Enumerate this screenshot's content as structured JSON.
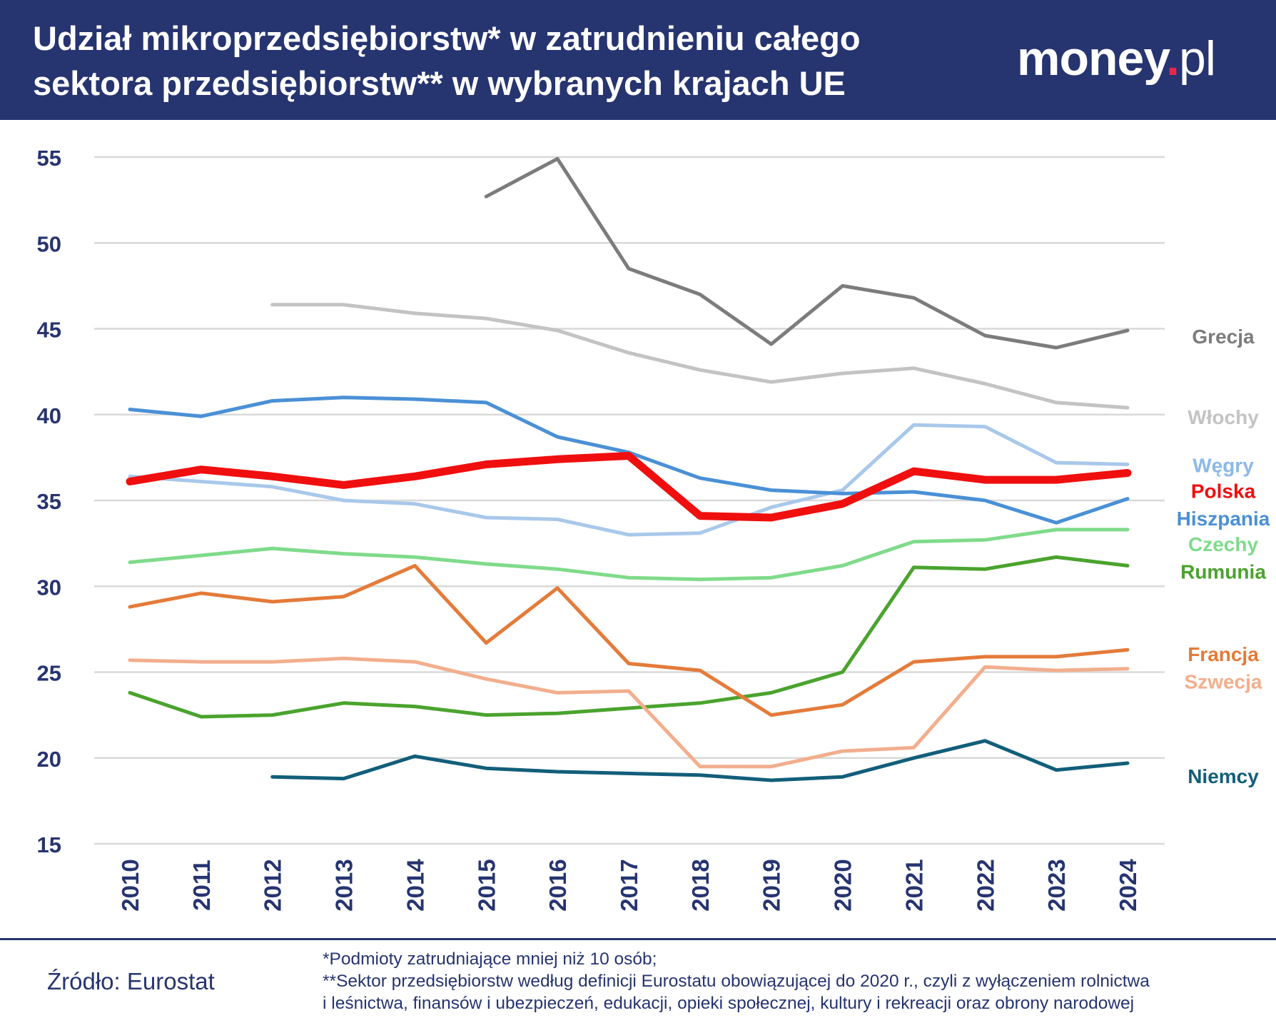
{
  "header": {
    "title": "Udział mikroprzedsiębiorstw* w zatrudnieniu całego sektora przedsiębiorstw** w wybranych krajach UE",
    "background": "#263470",
    "logo": {
      "main": "money",
      "dot": ".",
      "suffix": "pl",
      "dot_color": "#e8264c"
    }
  },
  "chart_data": {
    "type": "line",
    "x": [
      2010,
      2011,
      2012,
      2013,
      2014,
      2015,
      2016,
      2017,
      2018,
      2019,
      2020,
      2021,
      2022,
      2023,
      2024
    ],
    "ylim": [
      15,
      55
    ],
    "yticks": [
      15,
      20,
      25,
      30,
      35,
      40,
      45,
      50,
      55
    ],
    "grid": true,
    "legend": "labels at right end of lines",
    "series": [
      {
        "name": "Grecja",
        "color": "#7c7c7c",
        "width": 5,
        "values": [
          null,
          null,
          null,
          null,
          null,
          52.7,
          54.9,
          48.5,
          47.0,
          44.1,
          47.5,
          46.8,
          44.6,
          43.9,
          44.9
        ]
      },
      {
        "name": "Włochy",
        "color": "#c3c3c3",
        "width": 5,
        "values": [
          null,
          null,
          46.4,
          46.4,
          45.9,
          45.6,
          44.9,
          43.6,
          42.6,
          41.9,
          42.4,
          42.7,
          41.8,
          40.7,
          40.4
        ]
      },
      {
        "name": "Węgry",
        "color": "#a9c8ea",
        "width": 5,
        "values": [
          36.4,
          36.1,
          35.8,
          35.0,
          34.8,
          34.0,
          33.9,
          33.0,
          33.1,
          34.6,
          35.6,
          39.4,
          39.3,
          37.2,
          37.1
        ]
      },
      {
        "name": "Hiszpania",
        "color": "#4a90d6",
        "width": 5,
        "values": [
          40.3,
          39.9,
          40.8,
          41.0,
          40.9,
          40.7,
          38.7,
          37.8,
          36.3,
          35.6,
          35.4,
          35.5,
          35.0,
          33.7,
          35.1
        ]
      },
      {
        "name": "Czechy",
        "color": "#7fdb8a",
        "width": 5,
        "values": [
          31.4,
          31.8,
          32.2,
          31.9,
          31.7,
          31.3,
          31.0,
          30.5,
          30.4,
          30.5,
          31.2,
          32.6,
          32.7,
          33.3,
          33.3
        ]
      },
      {
        "name": "Rumunia",
        "color": "#4aa32d",
        "width": 5,
        "values": [
          23.8,
          22.4,
          22.5,
          23.2,
          23.0,
          22.5,
          22.6,
          22.9,
          23.2,
          23.8,
          25.0,
          31.1,
          31.0,
          31.7,
          31.2
        ]
      },
      {
        "name": "Francja",
        "color": "#e47b3a",
        "width": 5,
        "values": [
          28.8,
          29.6,
          29.1,
          29.4,
          31.2,
          26.7,
          29.9,
          25.5,
          25.1,
          22.5,
          23.1,
          25.6,
          25.9,
          25.9,
          26.3
        ]
      },
      {
        "name": "Szwecja",
        "color": "#f2ae8d",
        "width": 5,
        "values": [
          25.7,
          25.6,
          25.6,
          25.8,
          25.6,
          24.6,
          23.8,
          23.9,
          19.5,
          19.5,
          20.4,
          20.6,
          25.3,
          25.1,
          25.2
        ]
      },
      {
        "name": "Niemcy",
        "color": "#125e7a",
        "width": 5,
        "values": [
          null,
          null,
          18.9,
          18.8,
          20.1,
          19.4,
          19.2,
          19.1,
          19.0,
          18.7,
          18.9,
          20.0,
          21.0,
          19.3,
          19.7
        ]
      },
      {
        "name": "Polska",
        "color": "#f00f0f",
        "width": 11,
        "values": [
          36.1,
          36.8,
          36.4,
          35.9,
          36.4,
          37.1,
          37.4,
          37.6,
          34.1,
          34.0,
          34.8,
          36.7,
          36.2,
          36.2,
          36.6
        ]
      }
    ],
    "labels": [
      {
        "series": "Grecja",
        "color": "#7c7c7c",
        "value": 44.6
      },
      {
        "series": "Włochy",
        "color": "#c3c3c3",
        "value": 39.9
      },
      {
        "series": "Węgry",
        "color": "#8cb8e8",
        "value": 37.1
      },
      {
        "series": "Polska",
        "color": "#f00f0f",
        "value": 35.6
      },
      {
        "series": "Hiszpania",
        "color": "#4a90d6",
        "value": 34.0
      },
      {
        "series": "Czechy",
        "color": "#7fdb8a",
        "value": 32.5
      },
      {
        "series": "Rumunia",
        "color": "#4aa32d",
        "value": 30.9
      },
      {
        "series": "Francja",
        "color": "#e47b3a",
        "value": 26.1
      },
      {
        "series": "Szwecja",
        "color": "#f2ae8d",
        "value": 24.5
      },
      {
        "series": "Niemcy",
        "color": "#125e7a",
        "value": 19.0
      }
    ]
  },
  "footer": {
    "source": "Źródło: Eurostat",
    "notes": [
      "*Podmioty zatrudniające mniej niż 10 osób;",
      "**Sektor przedsiębiorstw według definicji Eurostatu obowiązującej do 2020 r., czyli z wyłączeniem rolnictwa",
      "i leśnictwa, finansów i ubezpieczeń, edukacji, opieki społecznej, kultury i rekreacji oraz obrony narodowej"
    ]
  }
}
